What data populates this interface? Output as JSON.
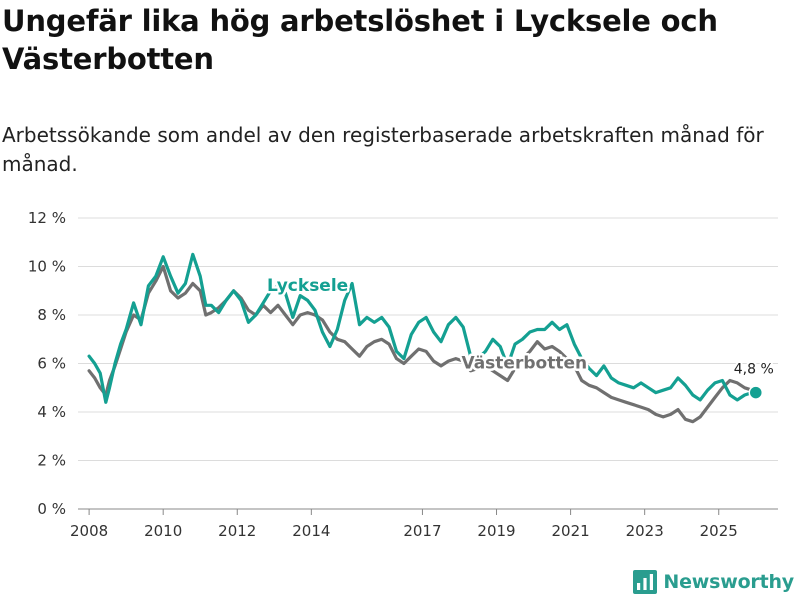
{
  "title": "Ungefär lika hög arbetslöshet i Lycksele och Västerbotten",
  "subtitle": "Arbetssökande som andel av den registerbaserade arbetskraften månad för månad.",
  "brand": {
    "name": "Newsworthy",
    "icon": "newsworthy-bar-chart-icon"
  },
  "chart_data": {
    "type": "line",
    "ylim": [
      0,
      12
    ],
    "yticks": [
      0,
      2,
      4,
      6,
      8,
      10,
      12
    ],
    "ytick_labels": [
      "0 %",
      "2 %",
      "4 %",
      "6 %",
      "8 %",
      "10 %",
      "12 %"
    ],
    "xlim": [
      2007.7,
      2026.6
    ],
    "xticks": [
      2008,
      2010,
      2012,
      2014,
      2017,
      2019,
      2021,
      2023,
      2025
    ],
    "xtick_labels": [
      "2008",
      "2010",
      "2012",
      "2014",
      "2017",
      "2019",
      "2021",
      "2023",
      "2025"
    ],
    "grid": true,
    "colors": {
      "Lycksele": "#14a092",
      "Västerbotten": "#707070"
    },
    "series": [
      {
        "name": "Västerbotten",
        "label": "Västerbotten",
        "x": [
          2008.0,
          2008.15,
          2008.3,
          2008.45,
          2008.55,
          2008.7,
          2008.85,
          2009.0,
          2009.2,
          2009.4,
          2009.6,
          2009.8,
          2010.0,
          2010.2,
          2010.4,
          2010.6,
          2010.8,
          2011.0,
          2011.15,
          2011.3,
          2011.5,
          2011.7,
          2011.9,
          2012.1,
          2012.3,
          2012.5,
          2012.7,
          2012.9,
          2013.1,
          2013.3,
          2013.5,
          2013.7,
          2013.9,
          2014.1,
          2014.3,
          2014.5,
          2014.7,
          2014.9,
          2015.1,
          2015.3,
          2015.5,
          2015.7,
          2015.9,
          2016.1,
          2016.3,
          2016.5,
          2016.7,
          2016.9,
          2017.1,
          2017.3,
          2017.5,
          2017.7,
          2017.9,
          2018.1,
          2018.3,
          2018.5,
          2018.7,
          2018.9,
          2019.1,
          2019.3,
          2019.5,
          2019.7,
          2019.9,
          2020.1,
          2020.3,
          2020.5,
          2020.7,
          2020.9,
          2021.1,
          2021.3,
          2021.5,
          2021.7,
          2021.9,
          2022.1,
          2022.3,
          2022.5,
          2022.7,
          2022.9,
          2023.1,
          2023.3,
          2023.5,
          2023.7,
          2023.9,
          2024.1,
          2024.3,
          2024.5,
          2024.7,
          2024.9,
          2025.1,
          2025.3,
          2025.5,
          2025.7,
          2025.9,
          2026.0
        ],
        "values": [
          5.7,
          5.4,
          5.0,
          4.7,
          5.3,
          5.9,
          6.6,
          7.3,
          8.0,
          7.8,
          8.9,
          9.4,
          10.0,
          9.0,
          8.7,
          8.9,
          9.3,
          9.0,
          8.0,
          8.1,
          8.3,
          8.6,
          9.0,
          8.7,
          8.2,
          8.0,
          8.4,
          8.1,
          8.4,
          8.0,
          7.6,
          8.0,
          8.1,
          8.0,
          7.8,
          7.3,
          7.0,
          6.9,
          6.6,
          6.3,
          6.7,
          6.9,
          7.0,
          6.8,
          6.2,
          6.0,
          6.3,
          6.6,
          6.5,
          6.1,
          5.9,
          6.1,
          6.2,
          6.1,
          5.7,
          5.8,
          5.9,
          5.7,
          5.5,
          5.3,
          5.8,
          6.2,
          6.5,
          6.9,
          6.6,
          6.7,
          6.5,
          6.2,
          5.9,
          5.3,
          5.1,
          5.0,
          4.8,
          4.6,
          4.5,
          4.4,
          4.3,
          4.2,
          4.1,
          3.9,
          3.8,
          3.9,
          4.1,
          3.7,
          3.6,
          3.8,
          4.2,
          4.6,
          5.0,
          5.3,
          5.2,
          5.0,
          4.9,
          4.8
        ]
      },
      {
        "name": "Lycksele",
        "label": "Lycksele",
        "end_value_label": "4,8 %",
        "end_value": 4.8,
        "x": [
          2008.0,
          2008.15,
          2008.3,
          2008.45,
          2008.55,
          2008.7,
          2008.85,
          2009.0,
          2009.2,
          2009.4,
          2009.6,
          2009.8,
          2010.0,
          2010.2,
          2010.4,
          2010.6,
          2010.8,
          2011.0,
          2011.15,
          2011.3,
          2011.5,
          2011.7,
          2011.9,
          2012.1,
          2012.3,
          2012.5,
          2012.7,
          2012.9,
          2013.1,
          2013.3,
          2013.5,
          2013.7,
          2013.9,
          2014.1,
          2014.3,
          2014.5,
          2014.7,
          2014.9,
          2015.1,
          2015.3,
          2015.5,
          2015.7,
          2015.9,
          2016.1,
          2016.3,
          2016.5,
          2016.7,
          2016.9,
          2017.1,
          2017.3,
          2017.5,
          2017.7,
          2017.9,
          2018.1,
          2018.3,
          2018.5,
          2018.7,
          2018.9,
          2019.1,
          2019.3,
          2019.5,
          2019.7,
          2019.9,
          2020.1,
          2020.3,
          2020.5,
          2020.7,
          2020.9,
          2021.1,
          2021.3,
          2021.5,
          2021.7,
          2021.9,
          2022.1,
          2022.3,
          2022.5,
          2022.7,
          2022.9,
          2023.1,
          2023.3,
          2023.5,
          2023.7,
          2023.9,
          2024.1,
          2024.3,
          2024.5,
          2024.7,
          2024.9,
          2025.1,
          2025.3,
          2025.5,
          2025.7,
          2025.9,
          2026.0
        ],
        "values": [
          6.3,
          6.0,
          5.6,
          4.4,
          5.0,
          6.0,
          6.8,
          7.4,
          8.5,
          7.6,
          9.2,
          9.6,
          10.4,
          9.6,
          8.9,
          9.3,
          10.5,
          9.6,
          8.4,
          8.4,
          8.1,
          8.6,
          9.0,
          8.6,
          7.7,
          8.0,
          8.5,
          9.0,
          9.2,
          8.9,
          7.9,
          8.8,
          8.6,
          8.2,
          7.3,
          6.7,
          7.4,
          8.6,
          9.3,
          7.6,
          7.9,
          7.7,
          7.9,
          7.5,
          6.5,
          6.2,
          7.2,
          7.7,
          7.9,
          7.3,
          6.9,
          7.6,
          7.9,
          7.5,
          6.3,
          6.2,
          6.5,
          7.0,
          6.7,
          5.9,
          6.8,
          7.0,
          7.3,
          7.4,
          7.4,
          7.7,
          7.4,
          7.6,
          6.8,
          6.2,
          5.8,
          5.5,
          5.9,
          5.4,
          5.2,
          5.1,
          5.0,
          5.2,
          5.0,
          4.8,
          4.9,
          5.0,
          5.4,
          5.1,
          4.7,
          4.5,
          4.9,
          5.2,
          5.3,
          4.7,
          4.5,
          4.7,
          4.8,
          4.8
        ]
      }
    ],
    "annotations": [
      {
        "text": "Lycksele",
        "series": "Lycksele",
        "x": 2013.9,
        "y": 9.0
      },
      {
        "text": "Västerbotten",
        "series": "Västerbotten",
        "x": 2019.75,
        "y": 5.8
      }
    ]
  }
}
